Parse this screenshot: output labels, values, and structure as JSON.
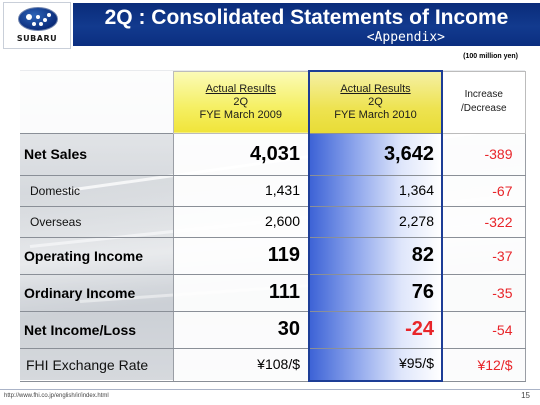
{
  "header": {
    "logo_text": "SUBARU",
    "title": "2Q : Consolidated Statements of Income",
    "subtitle": "<Appendix>",
    "unit_note": "(100 million yen)"
  },
  "table": {
    "columns": [
      {
        "line1": "Actual Results",
        "line2": "2Q",
        "line3": "FYE March 2009"
      },
      {
        "line1": "Actual Results",
        "line2": "2Q",
        "line3": "FYE March 2010"
      },
      {
        "line1": "Increase",
        "line2": "/Decrease"
      }
    ],
    "rows": [
      {
        "label": "Net Sales",
        "v2009": "4,031",
        "v2010": "3,642",
        "diff": "-389"
      },
      {
        "label": "Domestic",
        "v2009": "1,431",
        "v2010": "1,364",
        "diff": "-67"
      },
      {
        "label": "Overseas",
        "v2009": "2,600",
        "v2010": "2,278",
        "diff": "-322"
      },
      {
        "label": "Operating Income",
        "v2009": "119",
        "v2010": "82",
        "diff": "-37"
      },
      {
        "label": "Ordinary Income",
        "v2009": "111",
        "v2010": "76",
        "diff": "-35"
      },
      {
        "label": "Net Income/Loss",
        "v2009": "30",
        "v2010": "-24",
        "diff": "-54"
      },
      {
        "label": "FHI Exchange Rate",
        "v2009": "¥108/$",
        "v2010": "¥95/$",
        "diff": "¥12/$"
      }
    ]
  },
  "footer": {
    "url": "http://www.fhi.co.jp/english/ir/index.html",
    "page": "15"
  },
  "colors": {
    "title_bar": "#0b2e80",
    "highlight_column": "#3d63d6",
    "header_yellow": "#f0e43a",
    "negative_red": "#e8252a"
  }
}
